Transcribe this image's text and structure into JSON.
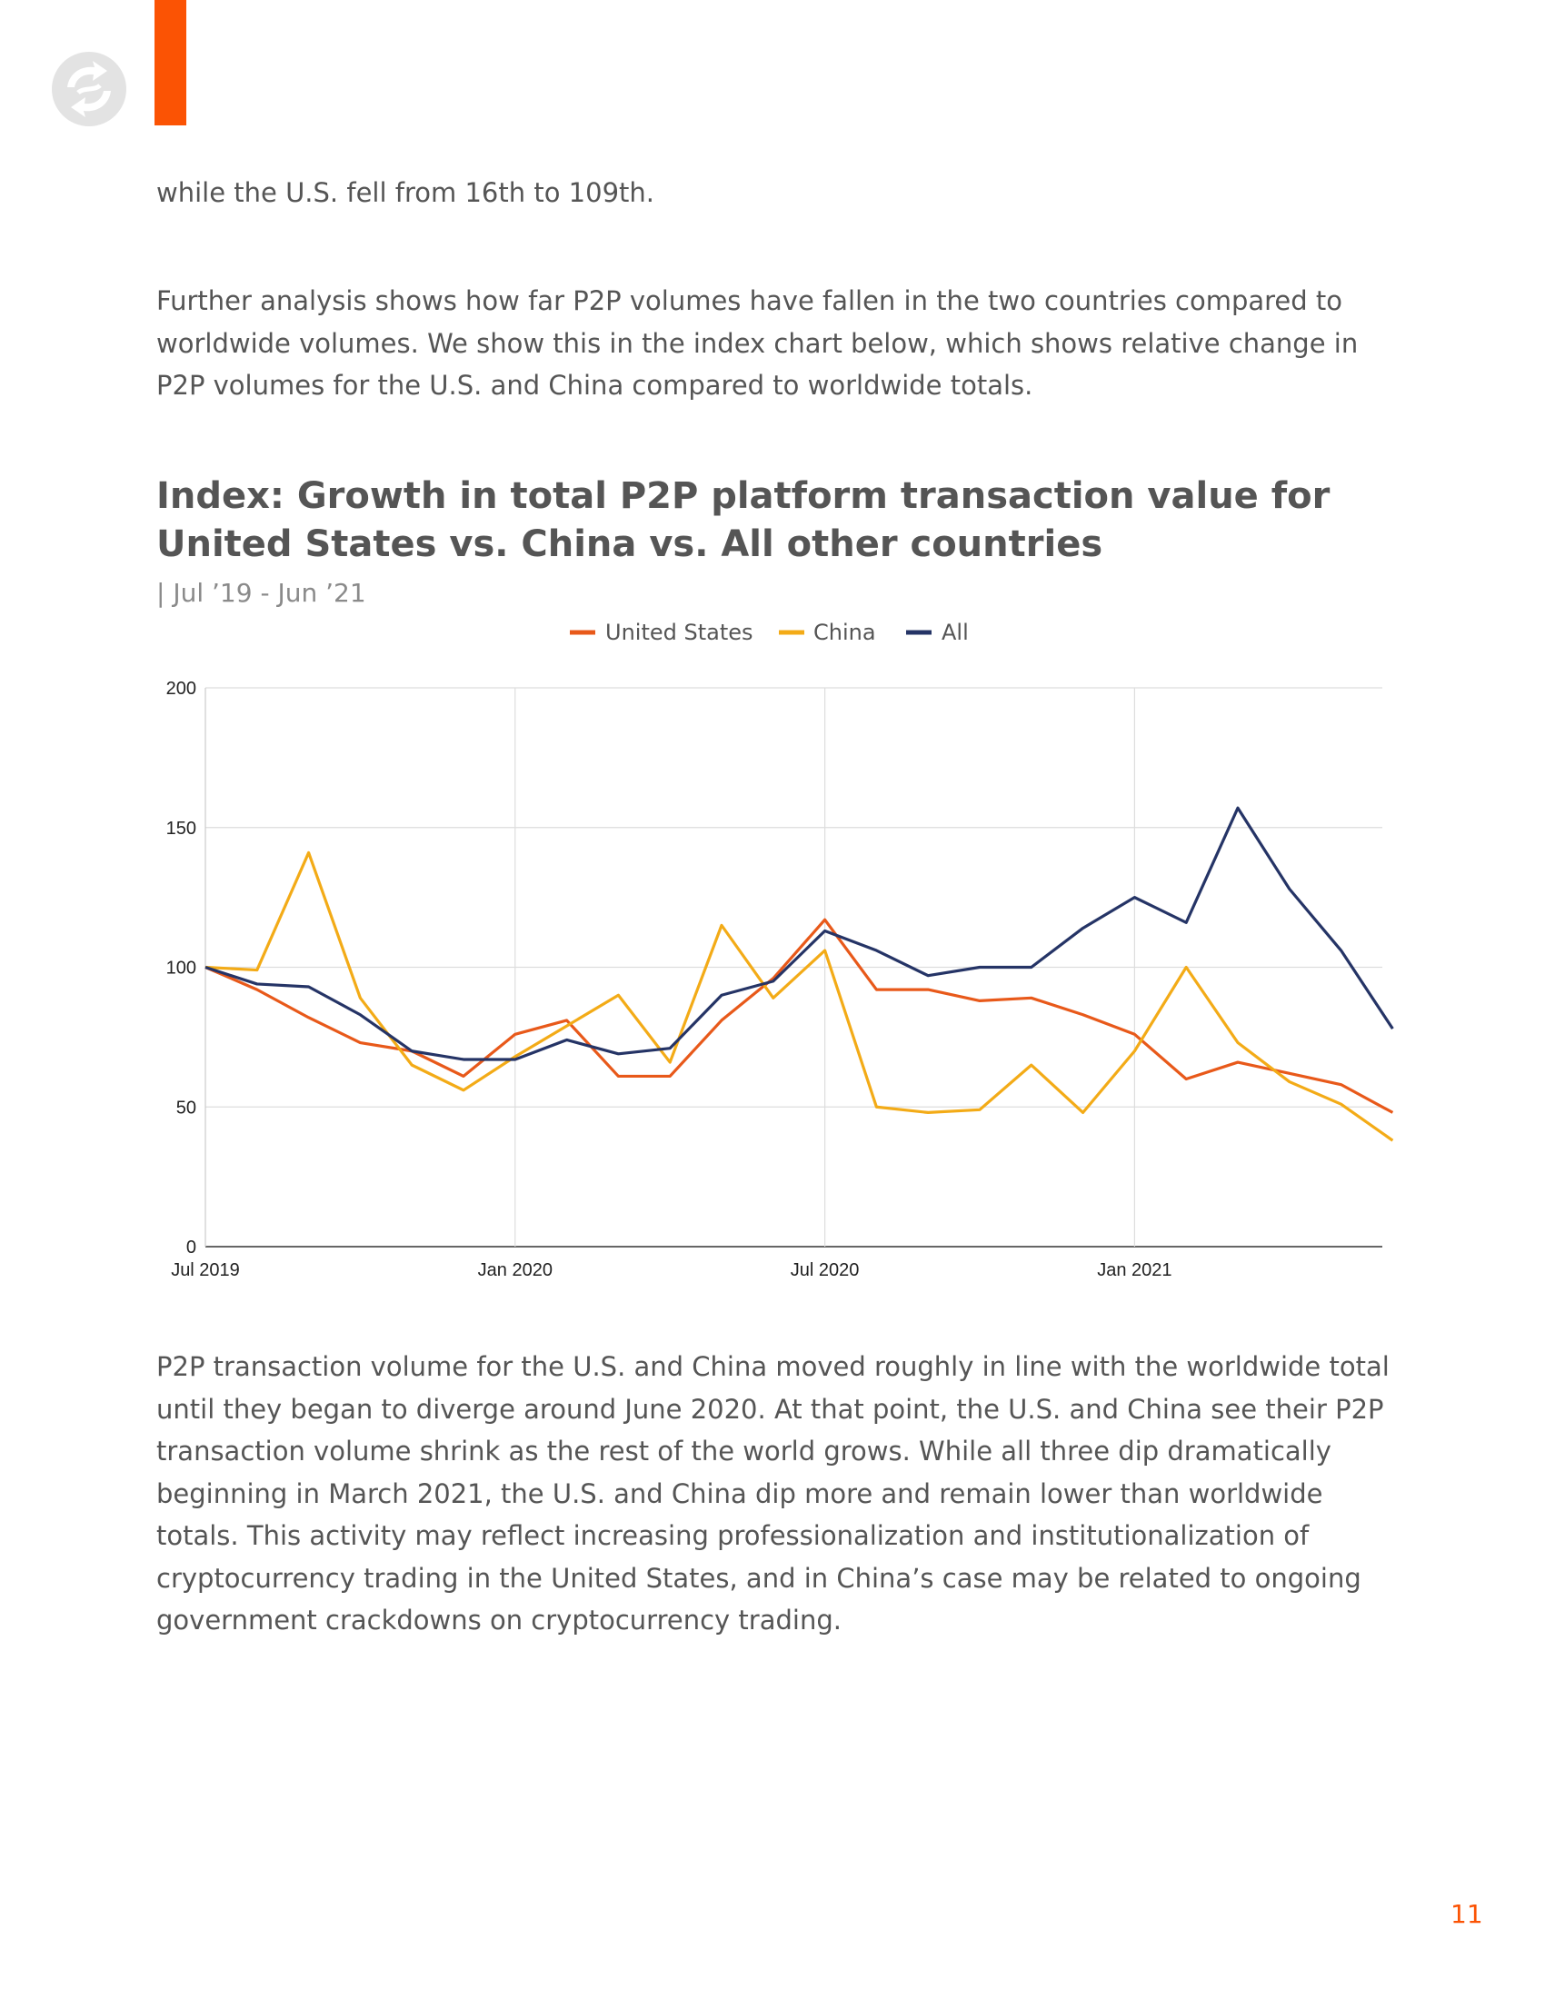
{
  "header": {
    "logo_icon": "exchange-logo-icon",
    "accent_color": "#fb5304"
  },
  "body": {
    "paragraph_1": "while the U.S. fell from 16th to 109th.",
    "paragraph_2": "Further analysis shows how far P2P volumes have fallen in the two countries compared to worldwide volumes. We show this in the index chart below, which shows relative change in P2P volumes for the U.S. and China compared to worldwide totals.",
    "paragraph_3": "P2P transaction volume for the U.S. and China moved roughly in line with the worldwide total until they began to diverge around June 2020. At that point, the U.S. and China see their P2P transaction volume shrink as the rest of the world grows. While all three dip dramatically beginning in March 2021, the U.S. and China dip more and remain lower than worldwide totals. This activity may reflect increasing professionalization and institutionalization of cryptocurrency trading in the United States, and in China’s case may be related to ongoing government crackdowns on cryptocurrency trading."
  },
  "chart_data": {
    "type": "line",
    "title": "Index: Growth in total P2P platform transaction value for United States vs. China vs. All other countries",
    "subtitle": "| Jul ’19 - Jun ’21",
    "xlabel": "",
    "ylabel": "",
    "ylim": [
      0,
      200
    ],
    "yticks": [
      0,
      50,
      100,
      150,
      200
    ],
    "x": [
      "2019-07",
      "2019-08",
      "2019-09",
      "2019-10",
      "2019-11",
      "2019-12",
      "2020-01",
      "2020-02",
      "2020-03",
      "2020-04",
      "2020-05",
      "2020-06",
      "2020-07",
      "2020-08",
      "2020-09",
      "2020-10",
      "2020-11",
      "2020-12",
      "2021-01",
      "2021-02",
      "2021-03",
      "2021-04",
      "2021-05",
      "2021-06"
    ],
    "xticks": [
      {
        "index": 0,
        "label": "Jul 2019"
      },
      {
        "index": 6,
        "label": "Jan 2020"
      },
      {
        "index": 12,
        "label": "Jul 2020"
      },
      {
        "index": 18,
        "label": "Jan 2021"
      }
    ],
    "legend_position": "top-center",
    "grid": true,
    "series": [
      {
        "name": "United States",
        "color": "#e8591a",
        "values": [
          100,
          92,
          82,
          73,
          70,
          61,
          76,
          81,
          61,
          61,
          81,
          96,
          117,
          92,
          92,
          88,
          89,
          83,
          76,
          60,
          66,
          62,
          58,
          48
        ]
      },
      {
        "name": "China",
        "color": "#f3ab17",
        "values": [
          100,
          99,
          141,
          89,
          65,
          56,
          68,
          79,
          90,
          66,
          115,
          89,
          106,
          50,
          48,
          49,
          65,
          48,
          70,
          100,
          73,
          59,
          51,
          38
        ]
      },
      {
        "name": "All",
        "color": "#253466",
        "values": [
          100,
          94,
          93,
          83,
          70,
          67,
          67,
          74,
          69,
          71,
          90,
          95,
          113,
          106,
          97,
          100,
          100,
          114,
          125,
          116,
          157,
          128,
          106,
          78
        ]
      }
    ]
  },
  "footer": {
    "page_number": "11"
  }
}
